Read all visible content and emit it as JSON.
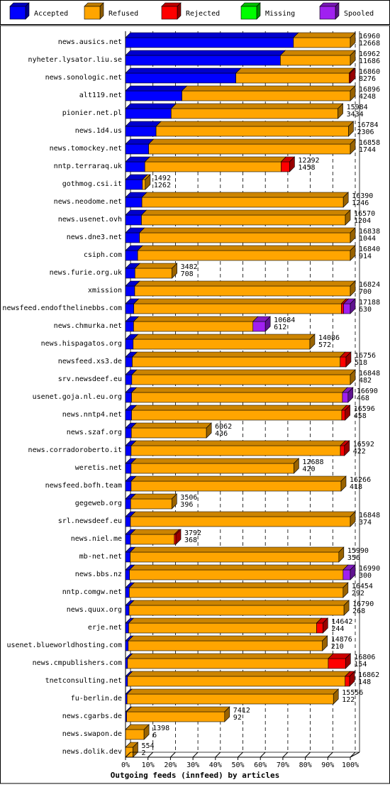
{
  "chart_data": {
    "type": "bar",
    "orientation": "horizontal",
    "stacked": true,
    "grid": true,
    "legend_position": "top",
    "xlabel": "Outgoing feeds (innfeed) by articles",
    "xlim": [
      0,
      100
    ],
    "xticks": [
      "0%",
      "10%",
      "20%",
      "30%",
      "40%",
      "50%",
      "60%",
      "70%",
      "80%",
      "90%",
      "100%"
    ],
    "legend": [
      {
        "name": "Accepted",
        "color": "#0000FF"
      },
      {
        "name": "Refused",
        "color": "#FFA500"
      },
      {
        "name": "Rejected",
        "color": "#FF0000"
      },
      {
        "name": "Missing",
        "color": "#00FF00"
      },
      {
        "name": "Spooled",
        "color": "#A020F0"
      }
    ],
    "rows": [
      {
        "name": "news.ausics.net",
        "offered": "16960",
        "accepted": "12668",
        "pct": [
          74.7,
          25.3,
          0,
          0,
          0
        ]
      },
      {
        "name": "nyheter.lysator.liu.se",
        "offered": "16962",
        "accepted": "11686",
        "pct": [
          68.9,
          31.1,
          0,
          0,
          0
        ]
      },
      {
        "name": "news.sonologic.net",
        "offered": "16860",
        "accepted": "8276",
        "pct": [
          49.1,
          50.4,
          0.5,
          0,
          0
        ]
      },
      {
        "name": "alt119.net",
        "offered": "16896",
        "accepted": "4248",
        "pct": [
          25.1,
          74.9,
          0,
          0,
          0
        ]
      },
      {
        "name": "pionier.net.pl",
        "offered": "15984",
        "accepted": "3434",
        "pct": [
          20.3,
          74.2,
          0,
          0,
          0
        ]
      },
      {
        "name": "news.1d4.us",
        "offered": "16784",
        "accepted": "2306",
        "pct": [
          13.6,
          85.6,
          0,
          0,
          0
        ]
      },
      {
        "name": "news.tomockey.net",
        "offered": "16858",
        "accepted": "1744",
        "pct": [
          10.3,
          89.7,
          0,
          0,
          0
        ]
      },
      {
        "name": "nntp.terraraq.uk",
        "offered": "12292",
        "accepted": "1458",
        "pct": [
          8.6,
          60.6,
          3.8,
          0,
          0
        ]
      },
      {
        "name": "gothmog.csi.it",
        "offered": "1492",
        "accepted": "1262",
        "pct": [
          7.5,
          1.3,
          0,
          0,
          0
        ]
      },
      {
        "name": "news.neodome.net",
        "offered": "16390",
        "accepted": "1246",
        "pct": [
          7.3,
          89.6,
          0,
          0,
          0
        ]
      },
      {
        "name": "news.usenet.ovh",
        "offered": "16570",
        "accepted": "1204",
        "pct": [
          7.1,
          90.7,
          0,
          0,
          0
        ]
      },
      {
        "name": "news.dne3.net",
        "offered": "16838",
        "accepted": "1044",
        "pct": [
          6.2,
          93.8,
          0,
          0,
          0
        ]
      },
      {
        "name": "csiph.com",
        "offered": "16840",
        "accepted": "914",
        "pct": [
          5.4,
          94.6,
          0,
          0,
          0
        ]
      },
      {
        "name": "news.furie.org.uk",
        "offered": "3482",
        "accepted": "708",
        "pct": [
          4.2,
          16.5,
          0,
          0,
          0
        ]
      },
      {
        "name": "xmission",
        "offered": "16824",
        "accepted": "700",
        "pct": [
          4.1,
          95.9,
          0,
          0,
          0
        ]
      },
      {
        "name": "newsfeed.endofthelinebbs.com",
        "offered": "17188",
        "accepted": "630",
        "pct": [
          3.7,
          92.3,
          1.0,
          0,
          3.0
        ]
      },
      {
        "name": "news.chmurka.net",
        "offered": "10684",
        "accepted": "612",
        "pct": [
          3.6,
          53.1,
          0,
          0,
          5.5
        ]
      },
      {
        "name": "news.hispagatos.org",
        "offered": "14086",
        "accepted": "572",
        "pct": [
          3.4,
          78.6,
          0,
          0,
          0
        ]
      },
      {
        "name": "newsfeed.xs3.de",
        "offered": "16756",
        "accepted": "518",
        "pct": [
          3.0,
          92.5,
          2.6,
          0,
          0
        ]
      },
      {
        "name": "srv.newsdeef.eu",
        "offered": "16848",
        "accepted": "482",
        "pct": [
          2.8,
          97.2,
          0,
          0,
          0
        ]
      },
      {
        "name": "usenet.goja.nl.eu.org",
        "offered": "16690",
        "accepted": "468",
        "pct": [
          2.7,
          93.8,
          0,
          0,
          2.5
        ]
      },
      {
        "name": "news.nntp4.net",
        "offered": "16596",
        "accepted": "458",
        "pct": [
          2.7,
          93.5,
          1.5,
          0,
          0
        ]
      },
      {
        "name": "news.szaf.org",
        "offered": "6062",
        "accepted": "436",
        "pct": [
          2.6,
          33.4,
          0,
          0,
          0
        ]
      },
      {
        "name": "news.corradoroberto.it",
        "offered": "16592",
        "accepted": "422",
        "pct": [
          2.5,
          93.1,
          1.8,
          0,
          0
        ]
      },
      {
        "name": "weretis.net",
        "offered": "12688",
        "accepted": "420",
        "pct": [
          2.5,
          72.4,
          0,
          0,
          0
        ]
      },
      {
        "name": "newsfeed.bofh.team",
        "offered": "16266",
        "accepted": "418",
        "pct": [
          2.5,
          93.4,
          0,
          0,
          0
        ]
      },
      {
        "name": "gegeweb.org",
        "offered": "3506",
        "accepted": "396",
        "pct": [
          2.3,
          18.3,
          0,
          0,
          0
        ]
      },
      {
        "name": "srl.newsdeef.eu",
        "offered": "16848",
        "accepted": "374",
        "pct": [
          2.2,
          97.8,
          0,
          0,
          0
        ]
      },
      {
        "name": "news.niel.me",
        "offered": "3792",
        "accepted": "368",
        "pct": [
          2.2,
          19.5,
          0.7,
          0,
          0
        ]
      },
      {
        "name": "mb-net.net",
        "offered": "15990",
        "accepted": "356",
        "pct": [
          2.1,
          92.8,
          0,
          0,
          0
        ]
      },
      {
        "name": "news.bbs.nz",
        "offered": "16990",
        "accepted": "300",
        "pct": [
          1.8,
          95.0,
          0,
          0,
          3.2
        ]
      },
      {
        "name": "nntp.comgw.net",
        "offered": "16454",
        "accepted": "292",
        "pct": [
          1.7,
          95.1,
          0,
          0,
          0
        ]
      },
      {
        "name": "news.quux.org",
        "offered": "16790",
        "accepted": "268",
        "pct": [
          1.6,
          95.6,
          0,
          0,
          0
        ]
      },
      {
        "name": "erje.net",
        "offered": "14642",
        "accepted": "244",
        "pct": [
          1.4,
          83.6,
          2.8,
          0,
          0
        ]
      },
      {
        "name": "usenet.blueworldhosting.com",
        "offered": "14876",
        "accepted": "210",
        "pct": [
          1.2,
          86.4,
          0,
          0,
          0
        ]
      },
      {
        "name": "news.cmpublishers.com",
        "offered": "16806",
        "accepted": "154",
        "pct": [
          0.9,
          89.3,
          7.7,
          0,
          0
        ]
      },
      {
        "name": "tnetconsulting.net",
        "offered": "16862",
        "accepted": "148",
        "pct": [
          0.9,
          96.8,
          2.0,
          0,
          0
        ]
      },
      {
        "name": "fu-berlin.de",
        "offered": "15556",
        "accepted": "122",
        "pct": [
          0.7,
          91.8,
          0,
          0,
          0
        ]
      },
      {
        "name": "news.cgarbs.de",
        "offered": "7412",
        "accepted": "92",
        "pct": [
          0.5,
          43.6,
          0,
          0,
          0
        ]
      },
      {
        "name": "news.swapon.de",
        "offered": "1398",
        "accepted": "6",
        "pct": [
          0.04,
          8.2,
          0,
          0,
          0
        ]
      },
      {
        "name": "news.dolik.dev",
        "offered": "554",
        "accepted": "2",
        "pct": [
          0.01,
          3.3,
          0,
          0,
          0
        ]
      }
    ]
  }
}
